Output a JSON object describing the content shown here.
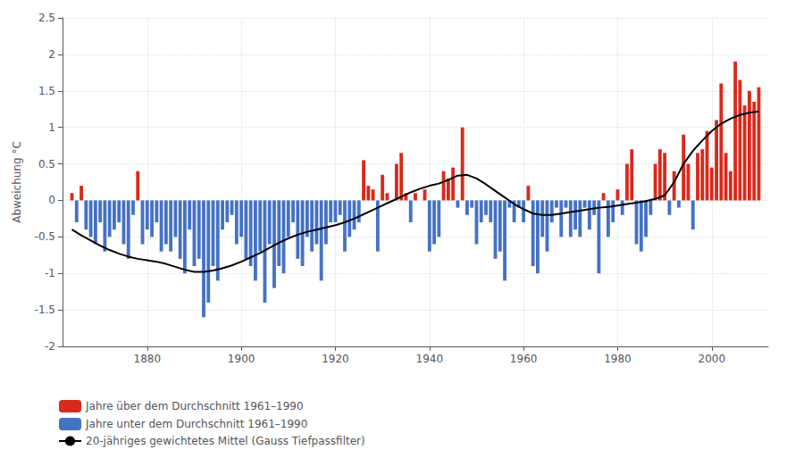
{
  "chart_data": {
    "type": "bar",
    "y_label": "Abweichung °C",
    "xlim": [
      1862,
      2012
    ],
    "xticks": [
      1880,
      1900,
      1920,
      1940,
      1960,
      1980,
      2000
    ],
    "ylim": [
      -2.0,
      2.5
    ],
    "yticks": [
      -2.0,
      -1.5,
      -1.0,
      -0.5,
      0.0,
      0.5,
      1.0,
      1.5,
      2.0,
      2.5
    ],
    "grid": true,
    "legend": "bottom left",
    "series": [
      {
        "name": "Jahre über dem Durchschnitt 1961–1990",
        "type": "bar",
        "color": "#d9291c",
        "x": [
          1864,
          1865,
          1866,
          1867,
          1868,
          1869,
          1870,
          1871,
          1872,
          1873,
          1874,
          1875,
          1876,
          1877,
          1878,
          1879,
          1880,
          1881,
          1882,
          1883,
          1884,
          1885,
          1886,
          1887,
          1888,
          1889,
          1890,
          1891,
          1892,
          1893,
          1894,
          1895,
          1896,
          1897,
          1898,
          1899,
          1900,
          1901,
          1902,
          1903,
          1904,
          1905,
          1906,
          1907,
          1908,
          1909,
          1910,
          1911,
          1912,
          1913,
          1914,
          1915,
          1916,
          1917,
          1918,
          1919,
          1920,
          1921,
          1922,
          1923,
          1924,
          1925,
          1926,
          1927,
          1928,
          1929,
          1930,
          1931,
          1932,
          1933,
          1934,
          1935,
          1936,
          1937,
          1938,
          1939,
          1940,
          1941,
          1942,
          1943,
          1944,
          1945,
          1946,
          1947,
          1948,
          1949,
          1950,
          1951,
          1952,
          1953,
          1954,
          1955,
          1956,
          1957,
          1958,
          1959,
          1960,
          1961,
          1962,
          1963,
          1964,
          1965,
          1966,
          1967,
          1968,
          1969,
          1970,
          1971,
          1972,
          1973,
          1974,
          1975,
          1976,
          1977,
          1978,
          1979,
          1980,
          1981,
          1982,
          1983,
          1984,
          1985,
          1986,
          1987,
          1988,
          1989,
          1990,
          1991,
          1992,
          1993,
          1994,
          1995,
          1996,
          1997,
          1998,
          1999,
          2000,
          2001,
          2002,
          2003,
          2004,
          2005,
          2006,
          2007,
          2008,
          2009,
          2010
        ],
        "values": [
          0.1,
          null,
          0.2,
          null,
          null,
          null,
          null,
          null,
          null,
          null,
          null,
          null,
          null,
          null,
          0.4,
          null,
          null,
          null,
          null,
          null,
          null,
          null,
          null,
          null,
          null,
          null,
          null,
          null,
          null,
          null,
          null,
          null,
          null,
          null,
          null,
          null,
          null,
          null,
          null,
          null,
          null,
          null,
          null,
          null,
          null,
          null,
          null,
          null,
          null,
          null,
          null,
          null,
          null,
          null,
          null,
          null,
          null,
          null,
          null,
          null,
          null,
          null,
          0.55,
          0.2,
          0.15,
          null,
          0.35,
          0.1,
          0.0,
          0.5,
          0.65,
          0.1,
          null,
          0.1,
          0.0,
          0.15,
          null,
          null,
          null,
          0.4,
          0.3,
          0.45,
          null,
          1.0,
          null,
          null,
          null,
          null,
          null,
          null,
          null,
          null,
          null,
          null,
          null,
          null,
          null,
          0.2,
          null,
          null,
          null,
          null,
          null,
          null,
          null,
          null,
          null,
          null,
          null,
          null,
          null,
          null,
          null,
          0.1,
          null,
          null,
          0.15,
          null,
          0.5,
          0.7,
          null,
          null,
          null,
          null,
          0.5,
          0.7,
          0.65,
          null,
          0.4,
          null,
          0.9,
          0.5,
          null,
          0.65,
          0.7,
          0.95,
          0.45,
          1.1,
          1.6,
          0.65,
          0.4,
          1.9,
          1.65,
          1.3,
          1.5,
          1.35,
          1.55
        ]
      },
      {
        "name": "Jahre unter dem Durchschnitt 1961–1990",
        "type": "bar",
        "color": "#4472c4",
        "x": [
          1864,
          1865,
          1866,
          1867,
          1868,
          1869,
          1870,
          1871,
          1872,
          1873,
          1874,
          1875,
          1876,
          1877,
          1878,
          1879,
          1880,
          1881,
          1882,
          1883,
          1884,
          1885,
          1886,
          1887,
          1888,
          1889,
          1890,
          1891,
          1892,
          1893,
          1894,
          1895,
          1896,
          1897,
          1898,
          1899,
          1900,
          1901,
          1902,
          1903,
          1904,
          1905,
          1906,
          1907,
          1908,
          1909,
          1910,
          1911,
          1912,
          1913,
          1914,
          1915,
          1916,
          1917,
          1918,
          1919,
          1920,
          1921,
          1922,
          1923,
          1924,
          1925,
          1926,
          1927,
          1928,
          1929,
          1930,
          1931,
          1932,
          1933,
          1934,
          1935,
          1936,
          1937,
          1938,
          1939,
          1940,
          1941,
          1942,
          1943,
          1944,
          1945,
          1946,
          1947,
          1948,
          1949,
          1950,
          1951,
          1952,
          1953,
          1954,
          1955,
          1956,
          1957,
          1958,
          1959,
          1960,
          1961,
          1962,
          1963,
          1964,
          1965,
          1966,
          1967,
          1968,
          1969,
          1970,
          1971,
          1972,
          1973,
          1974,
          1975,
          1976,
          1977,
          1978,
          1979,
          1980,
          1981,
          1982,
          1983,
          1984,
          1985,
          1986,
          1987,
          1988,
          1989,
          1990,
          1991,
          1992,
          1993,
          1994,
          1995,
          1996,
          1997,
          1998,
          1999,
          2000,
          2001,
          2002,
          2003,
          2004,
          2005,
          2006,
          2007,
          2008,
          2009,
          2010
        ],
        "values": [
          null,
          -0.3,
          null,
          -0.4,
          -0.5,
          -0.6,
          -0.3,
          -0.7,
          -0.5,
          -0.4,
          -0.3,
          -0.6,
          -0.8,
          -0.2,
          null,
          -0.6,
          -0.4,
          -0.5,
          -0.3,
          -0.7,
          -0.6,
          -0.7,
          -0.5,
          -0.8,
          -1.0,
          -0.4,
          -0.9,
          -0.8,
          -1.6,
          -1.4,
          -0.9,
          -1.1,
          -0.4,
          -0.3,
          -0.2,
          -0.6,
          -0.5,
          -0.8,
          -0.9,
          -1.1,
          -0.7,
          -1.4,
          -0.6,
          -1.2,
          -0.9,
          -1.0,
          -0.5,
          -0.3,
          -0.8,
          -0.9,
          -0.5,
          -0.7,
          -0.6,
          -1.1,
          -0.6,
          -0.3,
          -0.3,
          -0.2,
          -0.7,
          -0.5,
          -0.4,
          -0.3,
          null,
          null,
          null,
          -0.7,
          null,
          null,
          null,
          null,
          null,
          null,
          -0.3,
          null,
          null,
          null,
          -0.7,
          -0.6,
          -0.5,
          null,
          null,
          null,
          -0.1,
          null,
          -0.2,
          -0.1,
          -0.6,
          -0.3,
          -0.2,
          -0.3,
          -0.8,
          -0.7,
          -1.1,
          -0.1,
          -0.3,
          -0.1,
          -0.3,
          null,
          -0.9,
          -1.0,
          -0.5,
          -0.7,
          -0.3,
          -0.1,
          -0.5,
          -0.1,
          -0.5,
          -0.4,
          -0.5,
          -0.1,
          -0.4,
          -0.2,
          -1.0,
          null,
          -0.5,
          -0.3,
          null,
          -0.2,
          null,
          null,
          -0.6,
          -0.7,
          -0.5,
          -0.2,
          null,
          null,
          null,
          -0.2,
          null,
          -0.1,
          null,
          null,
          -0.4,
          null,
          null,
          null,
          null,
          null,
          null,
          null,
          null,
          null,
          null,
          null,
          null,
          null,
          null
        ]
      },
      {
        "name": "20-jähriges gewichtetes Mittel (Gauss Tiefpassfilter)",
        "type": "line",
        "color": "#000000",
        "line_style": "solid",
        "x": [
          1864,
          1866,
          1868,
          1870,
          1872,
          1874,
          1876,
          1878,
          1880,
          1882,
          1884,
          1886,
          1888,
          1890,
          1892,
          1894,
          1896,
          1898,
          1900,
          1902,
          1904,
          1906,
          1908,
          1910,
          1912,
          1914,
          1916,
          1918,
          1920,
          1922,
          1924,
          1926,
          1928,
          1930,
          1932,
          1934,
          1936,
          1938,
          1940,
          1942,
          1944,
          1946,
          1948,
          1950,
          1952,
          1954,
          1956,
          1958,
          1960,
          1962,
          1964,
          1966,
          1968,
          1970,
          1972,
          1974,
          1976,
          1978,
          1980,
          1982,
          1984,
          1986,
          1988,
          1990,
          1992,
          1994,
          1996,
          1998,
          2000,
          2002,
          2004,
          2006,
          2008,
          2010
        ],
        "values": [
          -0.4,
          -0.48,
          -0.55,
          -0.62,
          -0.68,
          -0.73,
          -0.77,
          -0.8,
          -0.82,
          -0.84,
          -0.87,
          -0.91,
          -0.95,
          -0.98,
          -0.98,
          -0.96,
          -0.93,
          -0.89,
          -0.84,
          -0.78,
          -0.72,
          -0.65,
          -0.58,
          -0.52,
          -0.47,
          -0.43,
          -0.4,
          -0.37,
          -0.34,
          -0.3,
          -0.25,
          -0.19,
          -0.13,
          -0.07,
          -0.01,
          0.05,
          0.11,
          0.16,
          0.2,
          0.23,
          0.28,
          0.34,
          0.35,
          0.3,
          0.22,
          0.13,
          0.04,
          -0.05,
          -0.12,
          -0.18,
          -0.2,
          -0.2,
          -0.18,
          -0.16,
          -0.14,
          -0.12,
          -0.1,
          -0.09,
          -0.07,
          -0.05,
          -0.03,
          -0.01,
          0.02,
          0.07,
          0.25,
          0.5,
          0.68,
          0.82,
          0.95,
          1.05,
          1.12,
          1.17,
          1.2,
          1.22
        ]
      }
    ]
  }
}
